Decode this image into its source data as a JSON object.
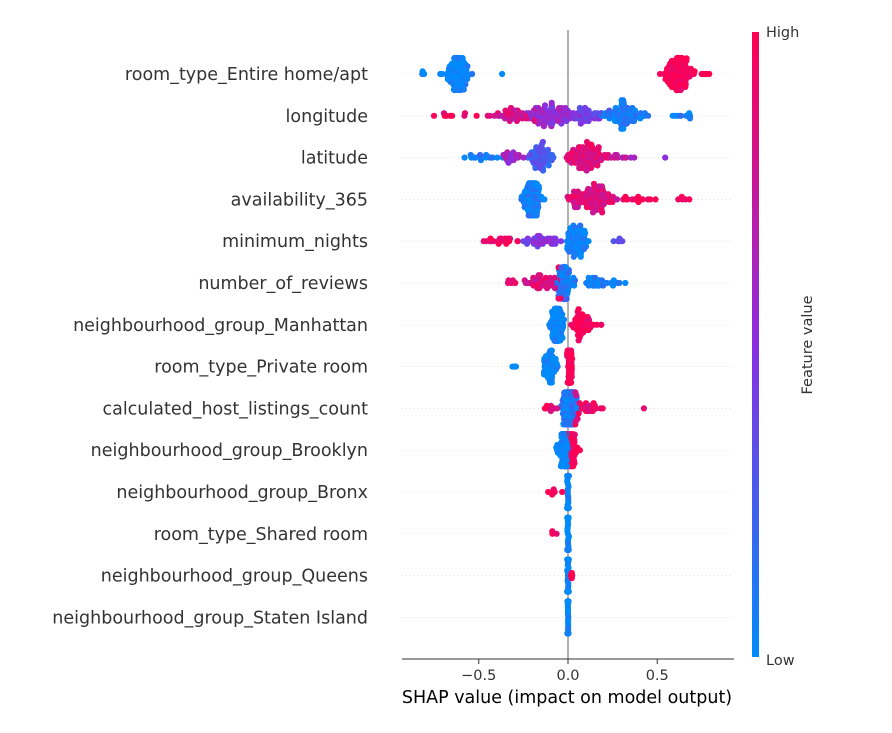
{
  "chart_data": {
    "type": "scatter",
    "subtype": "shap-beeswarm",
    "xlabel": "SHAP value (impact on model output)",
    "xlim": [
      -0.93,
      0.93
    ],
    "xticks": [
      -0.5,
      0.0,
      0.5
    ],
    "xtick_labels": [
      "−0.5",
      "0.0",
      "0.5"
    ],
    "features": [
      "room_type_Entire home/apt",
      "longitude",
      "latitude",
      "availability_365",
      "minimum_nights",
      "number_of_reviews",
      "neighbourhood_group_Manhattan",
      "room_type_Private room",
      "calculated_host_listings_count",
      "neighbourhood_group_Brooklyn",
      "neighbourhood_group_Bronx",
      "room_type_Shared room",
      "neighbourhood_group_Queens",
      "neighbourhood_group_Staten Island"
    ],
    "colorbar": {
      "label": "Feature value",
      "high_label": "High",
      "low_label": "Low",
      "low_color": "#008bfb",
      "high_color": "#ff0052"
    },
    "points": [
      {
        "feature": "room_type_Entire home/apt",
        "clusters": [
          {
            "center": -0.62,
            "spread": 0.06,
            "count": 120,
            "color": 0
          },
          {
            "center": -0.82,
            "spread": 0.02,
            "count": 3,
            "color": 0
          },
          {
            "center": -0.38,
            "spread": 0.01,
            "count": 1,
            "color": 0
          },
          {
            "center": 0.62,
            "spread": 0.06,
            "count": 130,
            "color": 1
          },
          {
            "center": 0.78,
            "spread": 0.03,
            "count": 5,
            "color": 1
          }
        ]
      },
      {
        "feature": "longitude",
        "clusters": [
          {
            "center": -0.1,
            "spread": 0.14,
            "count": 110,
            "color": 0.55
          },
          {
            "center": -0.3,
            "spread": 0.1,
            "count": 40,
            "color": 0.8
          },
          {
            "center": -0.62,
            "spread": 0.12,
            "count": 10,
            "color": 0.95
          },
          {
            "center": 0.3,
            "spread": 0.1,
            "count": 90,
            "color": 0.08
          },
          {
            "center": 0.1,
            "spread": 0.08,
            "count": 40,
            "color": 0.4
          },
          {
            "center": 0.6,
            "spread": 0.1,
            "count": 8,
            "color": 0.05
          }
        ]
      },
      {
        "feature": "latitude",
        "clusters": [
          {
            "center": -0.15,
            "spread": 0.06,
            "count": 70,
            "color": 0.25
          },
          {
            "center": 0.1,
            "spread": 0.09,
            "count": 110,
            "color": 0.85
          },
          {
            "center": -0.45,
            "spread": 0.12,
            "count": 18,
            "color": 0.1
          },
          {
            "center": -0.3,
            "spread": 0.05,
            "count": 20,
            "color": 0.6
          },
          {
            "center": 0.3,
            "spread": 0.04,
            "count": 10,
            "color": 0.7
          },
          {
            "center": 0.55,
            "spread": 0.01,
            "count": 1,
            "color": 0.6
          }
        ]
      },
      {
        "feature": "availability_365",
        "clusters": [
          {
            "center": -0.2,
            "spread": 0.04,
            "count": 110,
            "color": 0.05
          },
          {
            "center": 0.13,
            "spread": 0.11,
            "count": 120,
            "color": 0.85
          },
          {
            "center": 0.4,
            "spread": 0.08,
            "count": 15,
            "color": 0.95
          },
          {
            "center": 0.65,
            "spread": 0.04,
            "count": 5,
            "color": 1
          }
        ]
      },
      {
        "feature": "minimum_nights",
        "clusters": [
          {
            "center": 0.05,
            "spread": 0.05,
            "count": 90,
            "color": 0.05
          },
          {
            "center": -0.15,
            "spread": 0.09,
            "count": 40,
            "color": 0.45
          },
          {
            "center": -0.38,
            "spread": 0.08,
            "count": 20,
            "color": 0.9
          },
          {
            "center": 0.28,
            "spread": 0.04,
            "count": 5,
            "color": 0.4
          }
        ]
      },
      {
        "feature": "number_of_reviews",
        "clusters": [
          {
            "center": -0.02,
            "spread": 0.04,
            "count": 80,
            "color": 0.1
          },
          {
            "center": -0.13,
            "spread": 0.08,
            "count": 50,
            "color": 0.85
          },
          {
            "center": 0.18,
            "spread": 0.08,
            "count": 35,
            "color": 0.05
          },
          {
            "center": -0.3,
            "spread": 0.03,
            "count": 5,
            "color": 0.9
          }
        ]
      },
      {
        "feature": "neighbourhood_group_Manhattan",
        "clusters": [
          {
            "center": -0.06,
            "spread": 0.03,
            "count": 100,
            "color": 0
          },
          {
            "center": 0.07,
            "spread": 0.05,
            "count": 60,
            "color": 1
          },
          {
            "center": 0.18,
            "spread": 0.01,
            "count": 2,
            "color": 1
          }
        ]
      },
      {
        "feature": "room_type_Private room",
        "clusters": [
          {
            "center": 0.01,
            "spread": 0.01,
            "count": 110,
            "color": 1
          },
          {
            "center": -0.1,
            "spread": 0.03,
            "count": 60,
            "color": 0
          },
          {
            "center": -0.3,
            "spread": 0.03,
            "count": 3,
            "color": 0
          }
        ]
      },
      {
        "feature": "calculated_host_listings_count",
        "clusters": [
          {
            "center": 0.01,
            "spread": 0.04,
            "count": 130,
            "color": 0.1
          },
          {
            "center": 0.1,
            "spread": 0.08,
            "count": 30,
            "color": 0.9
          },
          {
            "center": -0.1,
            "spread": 0.05,
            "count": 10,
            "color": 0.9
          },
          {
            "center": 0.43,
            "spread": 0.01,
            "count": 1,
            "color": 1
          }
        ]
      },
      {
        "feature": "neighbourhood_group_Brooklyn",
        "clusters": [
          {
            "center": -0.02,
            "spread": 0.03,
            "count": 110,
            "color": 0
          },
          {
            "center": 0.03,
            "spread": 0.03,
            "count": 50,
            "color": 1
          }
        ]
      },
      {
        "feature": "neighbourhood_group_Bronx",
        "clusters": [
          {
            "center": 0.0,
            "spread": 0.003,
            "count": 120,
            "color": 0
          },
          {
            "center": -0.08,
            "spread": 0.03,
            "count": 6,
            "color": 1
          }
        ]
      },
      {
        "feature": "room_type_Shared room",
        "clusters": [
          {
            "center": 0.0,
            "spread": 0.003,
            "count": 120,
            "color": 0
          },
          {
            "center": -0.08,
            "spread": 0.02,
            "count": 3,
            "color": 1
          }
        ]
      },
      {
        "feature": "neighbourhood_group_Queens",
        "clusters": [
          {
            "center": 0.0,
            "spread": 0.003,
            "count": 120,
            "color": 0
          },
          {
            "center": 0.02,
            "spread": 0.01,
            "count": 4,
            "color": 1
          }
        ]
      },
      {
        "feature": "neighbourhood_group_Staten Island",
        "clusters": [
          {
            "center": 0.0,
            "spread": 0.002,
            "count": 120,
            "color": 0
          }
        ]
      }
    ]
  }
}
